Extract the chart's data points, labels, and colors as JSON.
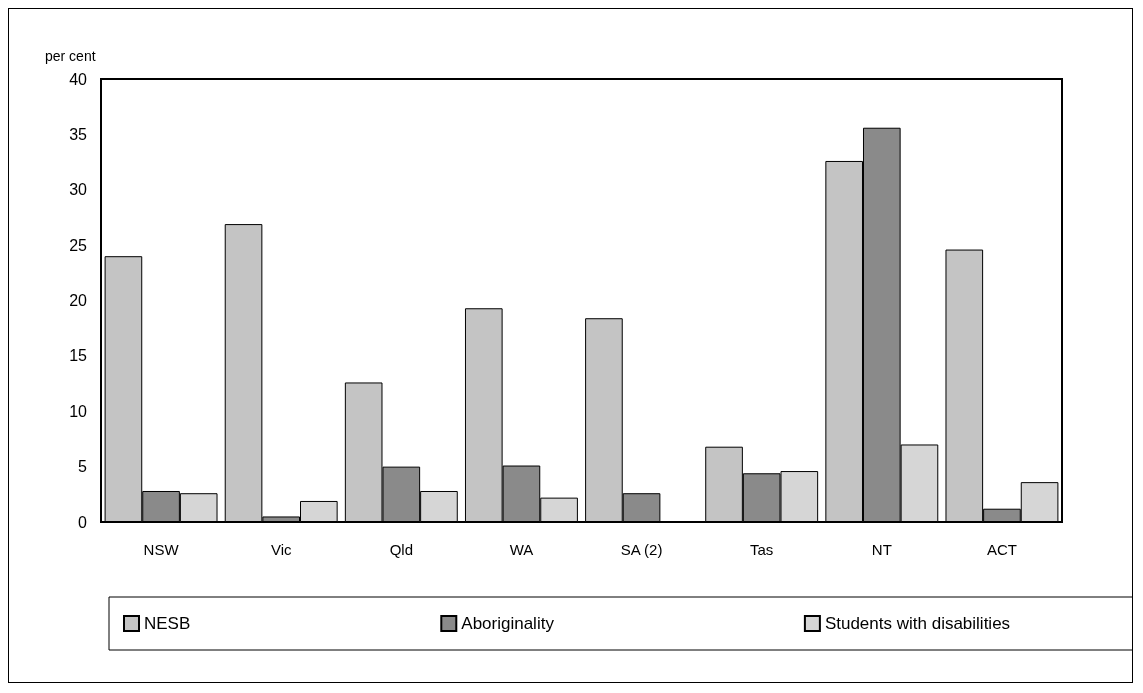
{
  "chart_data": {
    "type": "bar",
    "ylabel": "per cent",
    "categories": [
      "NSW",
      "Vic",
      "Qld",
      "WA",
      "SA (2)",
      "Tas",
      "NT",
      "ACT"
    ],
    "series": [
      {
        "name": "NESB",
        "color": "#c4c4c4",
        "values": [
          24.0,
          26.9,
          12.6,
          19.3,
          18.4,
          6.8,
          32.6,
          24.6
        ]
      },
      {
        "name": "Aboriginality",
        "color": "#8a8a8a",
        "values": [
          2.8,
          0.5,
          5.0,
          5.1,
          2.6,
          4.4,
          35.6,
          1.2
        ]
      },
      {
        "name": "Students with disabilities",
        "color": "#d6d6d6",
        "values": [
          2.6,
          1.9,
          2.8,
          2.2,
          null,
          4.6,
          7.0,
          3.6
        ]
      }
    ],
    "ylim": [
      0,
      40
    ],
    "yticks": [
      0,
      5,
      10,
      15,
      20,
      25,
      30,
      35,
      40
    ],
    "grid": false,
    "legend": "bottom"
  }
}
